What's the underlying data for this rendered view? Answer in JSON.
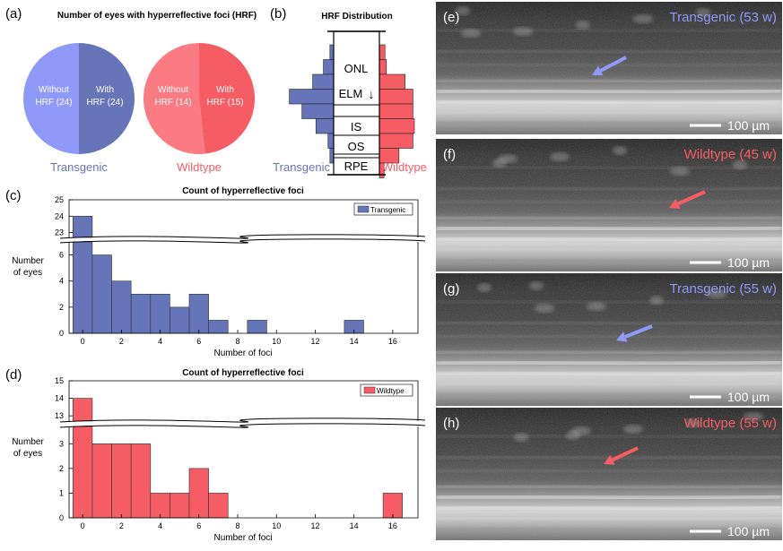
{
  "colors": {
    "transgenic": "#6674b8",
    "transgenic_light": "#8f99f7",
    "wildtype": "#f65c63",
    "wildtype_light": "#fb7b83"
  },
  "panel_labels": {
    "a": "(a)",
    "b": "(b)",
    "c": "(c)",
    "d": "(d)",
    "e": "(e)",
    "f": "(f)",
    "g": "(g)",
    "h": "(h)"
  },
  "chart_data": [
    {
      "panel": "a",
      "type": "pie",
      "title": "Number of eyes with hyperreflective foci (HRF)",
      "pies": [
        {
          "group": "Transgenic",
          "slices": [
            {
              "label": "Without",
              "sub": "HRF (24)",
              "value": 24
            },
            {
              "label": "With",
              "sub": "HRF (24)",
              "value": 24
            }
          ]
        },
        {
          "group": "Wildtype",
          "slices": [
            {
              "label": "Without",
              "sub": "HRF (14)",
              "value": 14
            },
            {
              "label": "With",
              "sub": "HRF (15)",
              "value": 15
            }
          ]
        }
      ]
    },
    {
      "panel": "b",
      "type": "bar",
      "title": "HRF Distribution",
      "layers": [
        "ONL",
        "ELM",
        "IS",
        "OS",
        "RPE"
      ],
      "elm_arrow": "↓",
      "left_label": "Transgenic",
      "right_label": "Wildtype",
      "transgenic_relative": [
        0.08,
        0.22,
        0.45,
        0.95,
        0.68,
        0.38,
        0.12,
        0.08,
        0,
        0,
        0,
        0,
        0,
        0
      ],
      "wildtype_relative": [
        0.12,
        0.15,
        0.55,
        0.72,
        0.72,
        0.75,
        0.72,
        0.42,
        0.1,
        0,
        0,
        0,
        0,
        0
      ]
    },
    {
      "panel": "c",
      "type": "bar",
      "title": "Count of hyperreflective foci",
      "legend": "Transgenic",
      "xlabel": "Number of foci",
      "ylabel": [
        "Number",
        "of eyes"
      ],
      "x": [
        0,
        1,
        2,
        3,
        4,
        5,
        6,
        7,
        8,
        9,
        10,
        11,
        12,
        13,
        14,
        15,
        16
      ],
      "values": [
        24,
        6,
        4,
        3,
        3,
        2,
        3,
        1,
        0,
        1,
        0,
        0,
        0,
        0,
        1,
        0,
        0
      ],
      "xticks": [
        0,
        2,
        4,
        6,
        8,
        10,
        12,
        14,
        16
      ],
      "yticks_lower": [
        0,
        2,
        4,
        6
      ],
      "yticks_upper": [
        23,
        24,
        25
      ],
      "ylim_lower": [
        0,
        7
      ],
      "ylim_upper": [
        22.7,
        25
      ],
      "xlim": [
        -0.7,
        17.3
      ]
    },
    {
      "panel": "d",
      "type": "bar",
      "title": "Count of hyperreflective foci",
      "legend": "Wildtype",
      "xlabel": "Number of foci",
      "ylabel": [
        "Number",
        "of eyes"
      ],
      "x": [
        0,
        1,
        2,
        3,
        4,
        5,
        6,
        7,
        8,
        9,
        10,
        11,
        12,
        13,
        14,
        15,
        16
      ],
      "values": [
        14,
        3,
        3,
        3,
        1,
        1,
        2,
        1,
        0,
        0,
        0,
        0,
        0,
        0,
        0,
        0,
        1
      ],
      "xticks": [
        0,
        2,
        4,
        6,
        8,
        10,
        12,
        14,
        16
      ],
      "yticks_lower": [
        0,
        1,
        2,
        3
      ],
      "yticks_upper": [
        13,
        14,
        15
      ],
      "ylim_lower": [
        0,
        3.7
      ],
      "ylim_upper": [
        12.7,
        15
      ],
      "xlim": [
        -0.7,
        17.3
      ]
    }
  ],
  "oct_images": [
    {
      "panel": "e",
      "caption": "Transgenic (53 w)",
      "group": "transgenic",
      "scale": "100 µm"
    },
    {
      "panel": "f",
      "caption": "Wildtype (45 w)",
      "group": "wildtype",
      "scale": "100 µm"
    },
    {
      "panel": "g",
      "caption": "Transgenic (55 w)",
      "group": "transgenic",
      "scale": "100 µm"
    },
    {
      "panel": "h",
      "caption": "Wildtype (55 w)",
      "group": "wildtype",
      "scale": "100 µm"
    }
  ]
}
